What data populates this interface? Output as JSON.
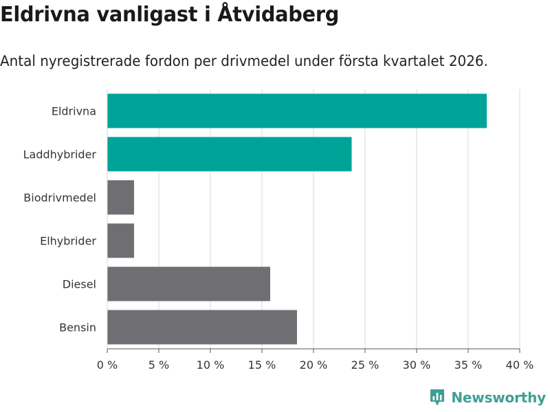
{
  "title": "Eldrivna vanligast i Åtvidaberg",
  "subtitle": "Antal nyregistrerade fordon per drivmedel under första kvartalet 2026.",
  "brand": {
    "name": "Newsworthy",
    "logo_icon": "bar-chart-pin-icon"
  },
  "colors": {
    "highlight": "#00a398",
    "neutral": "#6e6e73",
    "grid": "#d9d9d9",
    "axis": "#555555",
    "brand": "#3f9e95"
  },
  "chart_data": {
    "type": "bar",
    "orientation": "horizontal",
    "title": "Eldrivna vanligast i Åtvidaberg",
    "subtitle": "Antal nyregistrerade fordon per drivmedel under första kvartalet 2026.",
    "xlabel": "",
    "ylabel": "",
    "xlim": [
      0,
      40
    ],
    "x_ticks": [
      0,
      5,
      10,
      15,
      20,
      25,
      30,
      35,
      40
    ],
    "tick_suffix": " %",
    "grid": true,
    "categories": [
      "Eldrivna",
      "Laddhybrider",
      "Biodrivmedel",
      "Elhybrider",
      "Diesel",
      "Bensin"
    ],
    "values": [
      36.8,
      23.7,
      2.6,
      2.6,
      15.8,
      18.4
    ],
    "highlight": [
      true,
      true,
      false,
      false,
      false,
      false
    ]
  }
}
